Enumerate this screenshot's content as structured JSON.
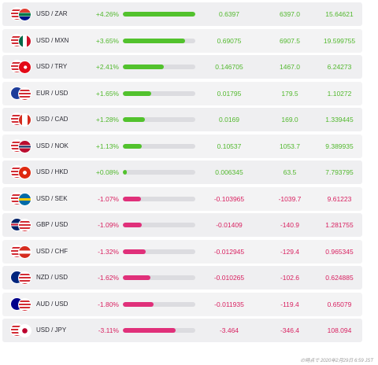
{
  "rows": [
    {
      "pair": "USD / ZAR",
      "pct": "+4.26%",
      "ratio": 1.0,
      "dir": "pos",
      "v1": "0.6397",
      "v2": "6397.0",
      "v3": "15.64621",
      "f1": "us",
      "f2": "za"
    },
    {
      "pair": "USD / MXN",
      "pct": "+3.65%",
      "ratio": 0.857,
      "dir": "pos",
      "v1": "0.69075",
      "v2": "6907.5",
      "v3": "19.599755",
      "f1": "us",
      "f2": "mx"
    },
    {
      "pair": "USD / TRY",
      "pct": "+2.41%",
      "ratio": 0.566,
      "dir": "pos",
      "v1": "0.146705",
      "v2": "1467.0",
      "v3": "6.24273",
      "f1": "us",
      "f2": "tr"
    },
    {
      "pair": "EUR / USD",
      "pct": "+1.65%",
      "ratio": 0.387,
      "dir": "pos",
      "v1": "0.01795",
      "v2": "179.5",
      "v3": "1.10272",
      "f1": "eu",
      "f2": "us"
    },
    {
      "pair": "USD / CAD",
      "pct": "+1.28%",
      "ratio": 0.3,
      "dir": "pos",
      "v1": "0.0169",
      "v2": "169.0",
      "v3": "1.339445",
      "f1": "us",
      "f2": "ca"
    },
    {
      "pair": "USD / NOK",
      "pct": "+1.13%",
      "ratio": 0.265,
      "dir": "pos",
      "v1": "0.10537",
      "v2": "1053.7",
      "v3": "9.389935",
      "f1": "us",
      "f2": "no"
    },
    {
      "pair": "USD / HKD",
      "pct": "+0.08%",
      "ratio": 0.05,
      "dir": "pos",
      "v1": "0.006345",
      "v2": "63.5",
      "v3": "7.793795",
      "f1": "us",
      "f2": "hk"
    },
    {
      "pair": "USD / SEK",
      "pct": "-1.07%",
      "ratio": 0.251,
      "dir": "neg",
      "v1": "-0.103965",
      "v2": "-1039.7",
      "v3": "9.61223",
      "f1": "us",
      "f2": "se"
    },
    {
      "pair": "GBP / USD",
      "pct": "-1.09%",
      "ratio": 0.256,
      "dir": "neg",
      "v1": "-0.01409",
      "v2": "-140.9",
      "v3": "1.281755",
      "f1": "gb",
      "f2": "us"
    },
    {
      "pair": "USD / CHF",
      "pct": "-1.32%",
      "ratio": 0.31,
      "dir": "neg",
      "v1": "-0.012945",
      "v2": "-129.4",
      "v3": "0.965345",
      "f1": "us",
      "f2": "ch"
    },
    {
      "pair": "NZD / USD",
      "pct": "-1.62%",
      "ratio": 0.38,
      "dir": "neg",
      "v1": "-0.010265",
      "v2": "-102.6",
      "v3": "0.624885",
      "f1": "nz",
      "f2": "us"
    },
    {
      "pair": "AUD / USD",
      "pct": "-1.80%",
      "ratio": 0.423,
      "dir": "neg",
      "v1": "-0.011935",
      "v2": "-119.4",
      "v3": "0.65079",
      "f1": "au",
      "f2": "us"
    },
    {
      "pair": "USD / JPY",
      "pct": "-3.11%",
      "ratio": 0.73,
      "dir": "neg",
      "v1": "-3.464",
      "v2": "-346.4",
      "v3": "108.094",
      "f1": "us",
      "f2": "jp"
    }
  ],
  "footer": "の時点で 2020年2月29日 6:59 JST"
}
